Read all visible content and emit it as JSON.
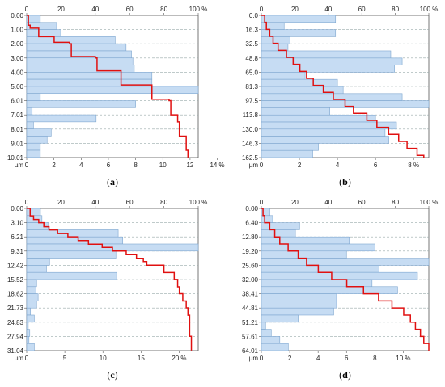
{
  "chart_data": [
    {
      "panel": "(a)",
      "panel_letter": "a",
      "type": "bar",
      "orientation": "horizontal",
      "unit_label": "µm",
      "bottom_pct_label": "%",
      "top_pct_label": "%",
      "y_tick_labels": [
        "0.00",
        "1.00",
        "2.00",
        "3.00",
        "4.00",
        "5.00",
        "6.01",
        "7.01",
        "8.01",
        "9.01",
        "10.01"
      ],
      "ylim": [
        0,
        10.01
      ],
      "bin_edges": [
        0.0,
        0.5,
        1.0,
        1.5,
        2.0,
        2.5,
        3.0,
        3.5,
        4.0,
        4.5,
        5.0,
        5.5,
        6.0,
        6.5,
        7.0,
        7.5,
        8.0,
        8.5,
        9.0,
        9.5,
        10.0
      ],
      "values": [
        1.0,
        2.2,
        2.5,
        6.5,
        7.3,
        7.7,
        7.8,
        7.9,
        9.2,
        9.2,
        12.6,
        1.0,
        8.0,
        0.4,
        5.1,
        0.5,
        1.8,
        1.5,
        1.0,
        1.0
      ],
      "xlim": [
        0,
        12.6
      ],
      "x_ticks": [
        0,
        2,
        4,
        6,
        8,
        10,
        12,
        14
      ],
      "x_tick_labels": [
        "0",
        "2",
        "4",
        "6",
        "8",
        "10",
        "12",
        "14 %"
      ],
      "top_ticks": [
        0,
        20,
        40,
        60,
        80,
        100
      ],
      "top_tick_labels": [
        "0",
        "20",
        "40",
        "60",
        "80",
        "100 %"
      ],
      "cumulative": {
        "y": [
          0,
          0.7,
          0.9,
          1.0,
          1.5,
          1.9,
          2.0,
          2.9,
          3.0,
          3.9,
          4.0,
          4.9,
          5.0,
          5.9,
          6.0,
          6.5,
          7.0,
          7.5,
          8.0,
          8.5,
          9.0,
          9.5,
          10.0
        ],
        "percent": [
          0,
          1,
          2,
          7,
          7,
          16,
          25,
          26,
          40,
          41,
          55,
          55,
          73,
          73,
          83,
          84,
          84,
          88,
          89,
          89,
          93,
          93,
          94
        ]
      }
    },
    {
      "panel": "(b)",
      "panel_letter": "b",
      "type": "bar",
      "orientation": "horizontal",
      "unit_label": "µm",
      "bottom_pct_label": "%",
      "top_pct_label": "%",
      "y_tick_labels": [
        "0.0",
        "16.3",
        "32.5",
        "48.8",
        "65.0",
        "81.3",
        "97.5",
        "113.8",
        "130.0",
        "146.3",
        "162.5"
      ],
      "ylim": [
        0,
        162.5
      ],
      "bin_edges": [
        0.0,
        8.1,
        16.3,
        24.4,
        32.5,
        40.6,
        48.8,
        56.9,
        65.0,
        73.1,
        81.3,
        89.4,
        97.5,
        105.6,
        113.8,
        121.9,
        130.0,
        138.1,
        146.3,
        154.4,
        162.5
      ],
      "values": [
        3.9,
        1.2,
        3.9,
        1.5,
        1.4,
        6.8,
        7.4,
        7.0,
        2.3,
        4.0,
        4.3,
        7.4,
        8.8,
        3.6,
        6.0,
        7.1,
        6.5,
        6.7,
        3.0,
        2.7
      ],
      "xlim": [
        0,
        8.8
      ],
      "x_ticks": [
        0,
        2,
        4,
        6,
        8
      ],
      "x_tick_labels": [
        "0",
        "2",
        "4",
        "6",
        "8 %"
      ],
      "top_ticks": [
        0,
        20,
        40,
        60,
        80,
        100
      ],
      "top_tick_labels": [
        "0",
        "20",
        "40",
        "60",
        "80",
        "100 %"
      ],
      "cumulative": {
        "y": [
          0,
          8,
          16,
          24,
          32,
          40,
          48,
          56,
          64,
          72,
          80,
          88,
          96,
          104,
          112,
          120,
          128,
          136,
          144,
          152,
          160,
          162.5
        ],
        "percent": [
          0,
          2,
          3,
          5,
          7,
          10,
          15,
          19,
          23,
          27,
          31,
          37,
          43,
          50,
          55,
          63,
          69,
          76,
          82,
          87,
          93,
          97
        ]
      }
    },
    {
      "panel": "(c)",
      "panel_letter": "c",
      "type": "bar",
      "orientation": "horizontal",
      "unit_label": "µm",
      "bottom_pct_label": "%",
      "top_pct_label": "%",
      "y_tick_labels": [
        "0.00",
        "3.10",
        "6.21",
        "9.31",
        "12.42",
        "15.52",
        "18.62",
        "21.73",
        "24.83",
        "27.94",
        "31.04"
      ],
      "ylim": [
        0,
        31.04
      ],
      "bin_edges": [
        0.0,
        1.55,
        3.1,
        4.66,
        6.21,
        7.76,
        9.31,
        10.86,
        12.42,
        13.97,
        15.52,
        17.07,
        18.62,
        20.18,
        21.73,
        23.28,
        24.83,
        26.39,
        27.94,
        29.49,
        31.04
      ],
      "values": [
        1.8,
        2.0,
        2.8,
        12.0,
        12.6,
        22.5,
        11.7,
        3.0,
        2.6,
        11.8,
        1.3,
        1.2,
        1.5,
        1.3,
        0.5,
        1.0,
        0.2,
        0.4,
        0.3,
        1.0
      ],
      "xlim": [
        0,
        22.5
      ],
      "x_ticks": [
        0,
        5,
        10,
        15,
        20
      ],
      "x_tick_labels": [
        "0",
        "5",
        "10",
        "15",
        "20 %"
      ],
      "top_ticks": [
        0,
        20,
        40,
        60,
        80,
        100
      ],
      "top_tick_labels": [
        "0",
        "20",
        "40",
        "60",
        "80",
        "100 %"
      ],
      "cumulative": {
        "y": [
          0,
          1.6,
          2.4,
          3.1,
          4.0,
          4.7,
          5.5,
          6.2,
          7.0,
          7.8,
          8.5,
          9.3,
          10.1,
          10.9,
          11.6,
          12.4,
          14.0,
          15.5,
          17.1,
          18.6,
          20.2,
          21.7,
          23.3,
          24.8,
          27.9,
          31.0
        ],
        "percent": [
          0,
          2,
          4,
          7,
          10,
          13,
          18,
          24,
          30,
          36,
          44,
          50,
          58,
          64,
          68,
          70,
          80,
          86,
          88,
          89,
          91,
          93,
          94,
          95,
          95,
          96
        ]
      }
    },
    {
      "panel": "(d)",
      "panel_letter": "d",
      "type": "bar",
      "orientation": "horizontal",
      "unit_label": "µm",
      "bottom_pct_label": "%",
      "top_pct_label": "%",
      "y_tick_labels": [
        "0.00",
        "6.40",
        "12.80",
        "19.20",
        "25.60",
        "32.00",
        "38.41",
        "44.81",
        "51.21",
        "57.61",
        "64.01"
      ],
      "ylim": [
        0,
        64.01
      ],
      "bin_edges": [
        0.0,
        3.2,
        6.4,
        9.6,
        12.8,
        16.0,
        19.2,
        22.4,
        25.6,
        28.8,
        32.0,
        35.2,
        38.41,
        41.6,
        44.81,
        48.0,
        51.21,
        54.4,
        57.61,
        60.81,
        64.01
      ],
      "values": [
        0.6,
        0.8,
        2.7,
        2.4,
        6.2,
        8.0,
        6.0,
        11.8,
        8.3,
        11.0,
        7.8,
        9.6,
        5.3,
        5.3,
        5.1,
        2.6,
        0.3,
        0.7,
        1.3,
        1.9
      ],
      "xlim": [
        0,
        11.8
      ],
      "x_ticks": [
        0,
        2,
        4,
        6,
        8,
        10
      ],
      "x_tick_labels": [
        "0",
        "2",
        "4",
        "6",
        "8",
        "10 %"
      ],
      "top_ticks": [
        0,
        20,
        40,
        60,
        80,
        100
      ],
      "top_tick_labels": [
        "0",
        "20",
        "40",
        "60",
        "80",
        "100 %"
      ],
      "cumulative": {
        "y": [
          0,
          3.2,
          6.4,
          9.6,
          12.8,
          16.0,
          19.2,
          22.4,
          25.6,
          28.8,
          32.0,
          35.2,
          38.4,
          41.6,
          44.8,
          48.0,
          51.2,
          54.4,
          57.6,
          60.8,
          64.0
        ],
        "percent": [
          0,
          1,
          2,
          5,
          8,
          11,
          16,
          22,
          27,
          34,
          42,
          51,
          61,
          70,
          78,
          85,
          89,
          92,
          95,
          97,
          100
        ]
      }
    }
  ]
}
